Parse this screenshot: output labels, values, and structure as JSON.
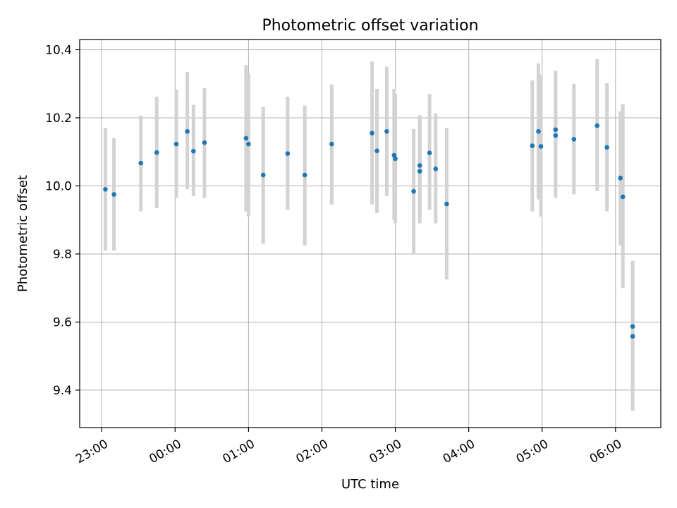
{
  "chart_data": {
    "type": "scatter",
    "title": "Photometric offset variation",
    "xlabel": "UTC time",
    "ylabel": "Photometric offset",
    "xlim": [
      "22:42",
      "06:37"
    ],
    "ylim": [
      9.29,
      10.43
    ],
    "grid": true,
    "x_ticks": [
      "23:00",
      "00:00",
      "01:00",
      "02:00",
      "03:00",
      "04:00",
      "05:00",
      "06:00"
    ],
    "y_ticks": [
      "9.4",
      "9.6",
      "9.8",
      "10.0",
      "10.2",
      "10.4"
    ],
    "errorbar_color": "#d3d3d3",
    "marker_color": "#1f77b4",
    "points": [
      {
        "x": "23:03",
        "y": 9.99,
        "ylo": 9.81,
        "yhi": 10.17
      },
      {
        "x": "23:10",
        "y": 9.975,
        "ylo": 9.81,
        "yhi": 10.14
      },
      {
        "x": "23:32",
        "y": 10.067,
        "ylo": 9.925,
        "yhi": 10.207
      },
      {
        "x": "23:45",
        "y": 10.098,
        "ylo": 9.935,
        "yhi": 10.262
      },
      {
        "x": "00:01",
        "y": 10.123,
        "ylo": 9.965,
        "yhi": 10.283
      },
      {
        "x": "00:10",
        "y": 10.16,
        "ylo": 9.99,
        "yhi": 10.335
      },
      {
        "x": "00:15",
        "y": 10.102,
        "ylo": 9.97,
        "yhi": 10.238
      },
      {
        "x": "00:24",
        "y": 10.127,
        "ylo": 9.965,
        "yhi": 10.287
      },
      {
        "x": "00:58",
        "y": 10.14,
        "ylo": 9.925,
        "yhi": 10.355
      },
      {
        "x": "01:00",
        "y": 10.123,
        "ylo": 9.91,
        "yhi": 10.33
      },
      {
        "x": "01:12",
        "y": 10.032,
        "ylo": 9.83,
        "yhi": 10.232
      },
      {
        "x": "01:32",
        "y": 10.095,
        "ylo": 9.93,
        "yhi": 10.262
      },
      {
        "x": "01:46",
        "y": 10.032,
        "ylo": 9.825,
        "yhi": 10.236
      },
      {
        "x": "02:08",
        "y": 10.123,
        "ylo": 9.945,
        "yhi": 10.298
      },
      {
        "x": "02:41",
        "y": 10.155,
        "ylo": 9.945,
        "yhi": 10.365
      },
      {
        "x": "02:45",
        "y": 10.103,
        "ylo": 9.92,
        "yhi": 10.285
      },
      {
        "x": "02:53",
        "y": 10.16,
        "ylo": 9.97,
        "yhi": 10.35
      },
      {
        "x": "02:59",
        "y": 10.09,
        "ylo": 9.9,
        "yhi": 10.285
      },
      {
        "x": "03:00",
        "y": 10.08,
        "ylo": 9.89,
        "yhi": 10.27
      },
      {
        "x": "03:15",
        "y": 9.984,
        "ylo": 9.8,
        "yhi": 10.167
      },
      {
        "x": "03:20",
        "y": 10.06,
        "ylo": 9.91,
        "yhi": 10.208
      },
      {
        "x": "03:20",
        "y": 10.043,
        "ylo": 9.89,
        "yhi": 10.195
      },
      {
        "x": "03:28",
        "y": 10.097,
        "ylo": 9.93,
        "yhi": 10.27
      },
      {
        "x": "03:33",
        "y": 10.05,
        "ylo": 9.89,
        "yhi": 10.213
      },
      {
        "x": "03:42",
        "y": 9.947,
        "ylo": 9.725,
        "yhi": 10.17
      },
      {
        "x": "04:52",
        "y": 10.118,
        "ylo": 9.925,
        "yhi": 10.31
      },
      {
        "x": "04:57",
        "y": 10.16,
        "ylo": 9.96,
        "yhi": 10.36
      },
      {
        "x": "04:59",
        "y": 10.116,
        "ylo": 9.91,
        "yhi": 10.325
      },
      {
        "x": "05:11",
        "y": 10.165,
        "ylo": 9.995,
        "yhi": 10.338
      },
      {
        "x": "05:11",
        "y": 10.148,
        "ylo": 9.965,
        "yhi": 10.33
      },
      {
        "x": "05:26",
        "y": 10.137,
        "ylo": 9.975,
        "yhi": 10.3
      },
      {
        "x": "05:45",
        "y": 10.177,
        "ylo": 9.985,
        "yhi": 10.372
      },
      {
        "x": "05:53",
        "y": 10.113,
        "ylo": 9.925,
        "yhi": 10.302
      },
      {
        "x": "06:04",
        "y": 10.023,
        "ylo": 9.825,
        "yhi": 10.22
      },
      {
        "x": "06:06",
        "y": 9.968,
        "ylo": 9.7,
        "yhi": 10.24
      },
      {
        "x": "06:14",
        "y": 9.587,
        "ylo": 9.395,
        "yhi": 9.78
      },
      {
        "x": "06:14",
        "y": 9.558,
        "ylo": 9.34,
        "yhi": 9.775
      }
    ]
  }
}
